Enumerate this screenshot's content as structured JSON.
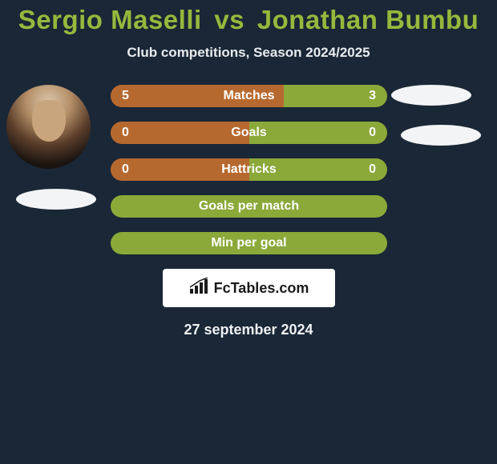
{
  "title_color": "#97b83c",
  "player_left": "Sergio Maselli",
  "vs_word": "vs",
  "player_right": "Jonathan Bumbu",
  "subtitle": "Club competitions, Season 2024/2025",
  "colors": {
    "left": "#b6692f",
    "right": "#8aa939",
    "empty": "#8aa939",
    "bg": "#1a2736"
  },
  "bars": [
    {
      "label": "Matches",
      "left_val": "5",
      "right_val": "3",
      "left_pct": 62.5,
      "right_pct": 37.5,
      "show_vals": true
    },
    {
      "label": "Goals",
      "left_val": "0",
      "right_val": "0",
      "left_pct": 50,
      "right_pct": 50,
      "show_vals": true
    },
    {
      "label": "Hattricks",
      "left_val": "0",
      "right_val": "0",
      "left_pct": 50,
      "right_pct": 50,
      "show_vals": true
    },
    {
      "label": "Goals per match",
      "left_val": "",
      "right_val": "",
      "left_pct": 0,
      "right_pct": 0,
      "show_vals": false,
      "single": true
    },
    {
      "label": "Min per goal",
      "left_val": "",
      "right_val": "",
      "left_pct": 0,
      "right_pct": 0,
      "show_vals": false,
      "single": true
    }
  ],
  "brand": "FcTables.com",
  "date": "27 september 2024",
  "fontsize": {
    "title": 33,
    "subtitle": 17,
    "bar_label": 16,
    "brand": 18,
    "date": 18
  }
}
